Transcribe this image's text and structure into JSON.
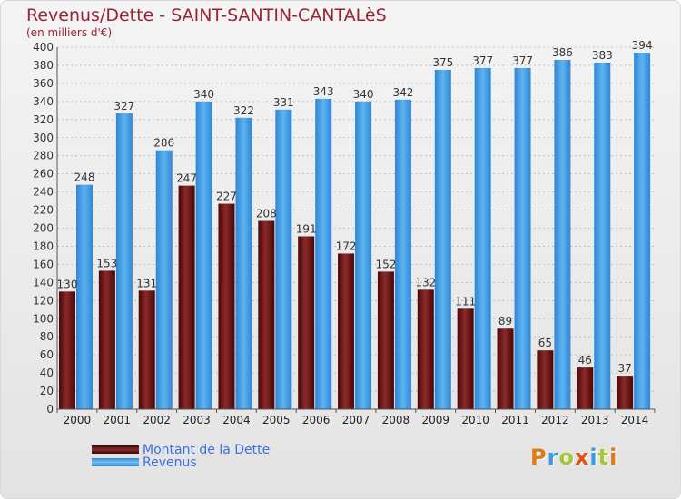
{
  "header": {
    "title": "Revenus/Dette - SAINT-SANTIN-CANTALèS",
    "subtitle": "(en milliers d'€)"
  },
  "legend": {
    "dette_label": "Montant de la Dette",
    "revenus_label": "Revenus"
  },
  "logo": {
    "text": "Proxiti"
  },
  "colors": {
    "dette": "#6b0d0d",
    "revenus": "#3d9ae3",
    "title": "#9a2136",
    "legend_text": "#3b6fe0"
  },
  "chart_data": {
    "type": "bar",
    "categories": [
      "2000",
      "2001",
      "2002",
      "2003",
      "2004",
      "2005",
      "2006",
      "2007",
      "2008",
      "2009",
      "2010",
      "2011",
      "2012",
      "2013",
      "2014"
    ],
    "series": [
      {
        "name": "Montant de la Dette",
        "values": [
          130,
          153,
          131,
          247,
          227,
          208,
          191,
          172,
          152,
          132,
          111,
          89,
          65,
          46,
          37
        ]
      },
      {
        "name": "Revenus",
        "values": [
          248,
          327,
          286,
          340,
          322,
          331,
          343,
          340,
          342,
          375,
          377,
          377,
          386,
          383,
          394
        ]
      }
    ],
    "ylim": [
      0,
      400
    ],
    "yticks": [
      0,
      20,
      40,
      60,
      80,
      100,
      120,
      140,
      160,
      180,
      200,
      220,
      240,
      260,
      280,
      300,
      320,
      340,
      360,
      380,
      400
    ],
    "grid": "horizontal-dashed",
    "legend_position": "bottom-left"
  }
}
